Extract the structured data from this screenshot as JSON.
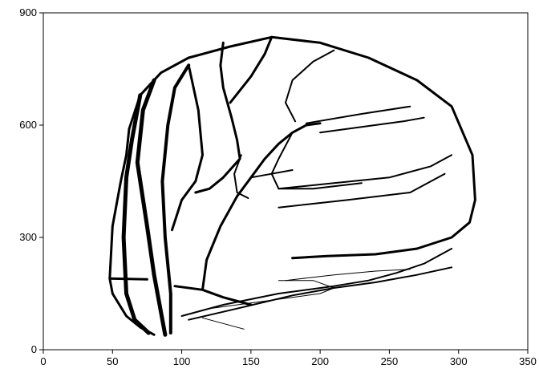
{
  "chart_data": {
    "type": "line",
    "title": "",
    "xlabel": "",
    "ylabel": "",
    "xlim": [
      0,
      350
    ],
    "ylim": [
      0,
      900
    ],
    "grid": false,
    "x_ticks": [
      0,
      50,
      100,
      150,
      200,
      250,
      300,
      350
    ],
    "y_ticks": [
      0,
      300,
      600,
      900
    ],
    "series": [
      {
        "width": 3,
        "points": [
          [
            80,
            40
          ],
          [
            70,
            60
          ],
          [
            60,
            90
          ],
          [
            50,
            150
          ],
          [
            48,
            190
          ],
          [
            50,
            330
          ],
          [
            56,
            450
          ],
          [
            60,
            520
          ],
          [
            62,
            590
          ],
          [
            70,
            680
          ],
          [
            85,
            740
          ],
          [
            105,
            780
          ],
          [
            135,
            810
          ],
          [
            165,
            835
          ],
          [
            200,
            820
          ],
          [
            235,
            780
          ],
          [
            270,
            720
          ],
          [
            295,
            650
          ],
          [
            310,
            520
          ],
          [
            312,
            400
          ],
          [
            308,
            340
          ],
          [
            295,
            300
          ],
          [
            270,
            270
          ],
          [
            240,
            255
          ],
          [
            205,
            250
          ],
          [
            180,
            245
          ]
        ]
      },
      {
        "width": 5,
        "points": [
          [
            76,
            45
          ],
          [
            66,
            80
          ],
          [
            60,
            150
          ],
          [
            58,
            300
          ],
          [
            60,
            460
          ],
          [
            64,
            560
          ],
          [
            70,
            680
          ]
        ]
      },
      {
        "width": 5,
        "points": [
          [
            88,
            40
          ],
          [
            85,
            100
          ],
          [
            80,
            200
          ],
          [
            75,
            330
          ],
          [
            68,
            500
          ],
          [
            72,
            640
          ],
          [
            80,
            720
          ]
        ]
      },
      {
        "width": 4,
        "points": [
          [
            92,
            45
          ],
          [
            92,
            150
          ],
          [
            88,
            300
          ],
          [
            86,
            450
          ],
          [
            90,
            600
          ],
          [
            95,
            700
          ],
          [
            105,
            760
          ]
        ]
      },
      {
        "width": 3,
        "points": [
          [
            48,
            190
          ],
          [
            75,
            188
          ]
        ]
      },
      {
        "width": 3,
        "points": [
          [
            95,
            170
          ],
          [
            115,
            160
          ],
          [
            130,
            140
          ],
          [
            150,
            120
          ]
        ]
      },
      {
        "width": 3,
        "points": [
          [
            93,
            320
          ],
          [
            100,
            400
          ],
          [
            110,
            450
          ],
          [
            115,
            520
          ],
          [
            112,
            640
          ],
          [
            105,
            760
          ]
        ]
      },
      {
        "width": 3,
        "points": [
          [
            110,
            420
          ],
          [
            120,
            430
          ],
          [
            130,
            460
          ],
          [
            142,
            510
          ],
          [
            140,
            560
          ],
          [
            136,
            620
          ],
          [
            130,
            700
          ],
          [
            128,
            760
          ],
          [
            130,
            820
          ]
        ]
      },
      {
        "width": 3,
        "points": [
          [
            135,
            660
          ],
          [
            150,
            730
          ],
          [
            160,
            790
          ],
          [
            165,
            835
          ]
        ]
      },
      {
        "width": 3,
        "points": [
          [
            115,
            160
          ],
          [
            118,
            240
          ],
          [
            128,
            330
          ],
          [
            140,
            410
          ],
          [
            150,
            460
          ],
          [
            160,
            510
          ],
          [
            170,
            550
          ],
          [
            180,
            580
          ],
          [
            190,
            600
          ],
          [
            200,
            605
          ]
        ]
      },
      {
        "width": 2,
        "points": [
          [
            182,
            610
          ],
          [
            175,
            660
          ],
          [
            180,
            720
          ],
          [
            195,
            770
          ],
          [
            210,
            800
          ]
        ]
      },
      {
        "width": 2,
        "points": [
          [
            190,
            605
          ],
          [
            230,
            630
          ],
          [
            265,
            650
          ]
        ]
      },
      {
        "width": 2,
        "points": [
          [
            200,
            580
          ],
          [
            260,
            610
          ],
          [
            275,
            620
          ]
        ]
      },
      {
        "width": 2,
        "points": [
          [
            180,
            580
          ],
          [
            170,
            510
          ],
          [
            165,
            470
          ],
          [
            170,
            430
          ],
          [
            195,
            430
          ],
          [
            230,
            445
          ]
        ]
      },
      {
        "width": 2,
        "points": [
          [
            170,
            430
          ],
          [
            210,
            445
          ],
          [
            250,
            460
          ],
          [
            280,
            490
          ],
          [
            295,
            520
          ]
        ]
      },
      {
        "width": 2,
        "points": [
          [
            170,
            380
          ],
          [
            220,
            400
          ],
          [
            265,
            420
          ],
          [
            290,
            470
          ]
        ]
      },
      {
        "width": 2,
        "points": [
          [
            148,
            405
          ],
          [
            140,
            420
          ],
          [
            138,
            470
          ],
          [
            143,
            520
          ]
        ]
      },
      {
        "width": 2,
        "points": [
          [
            150,
            460
          ],
          [
            165,
            470
          ],
          [
            180,
            480
          ]
        ]
      },
      {
        "width": 2,
        "points": [
          [
            100,
            90
          ],
          [
            130,
            120
          ],
          [
            170,
            150
          ],
          [
            210,
            170
          ],
          [
            235,
            185
          ],
          [
            255,
            205
          ],
          [
            275,
            230
          ],
          [
            295,
            270
          ]
        ]
      },
      {
        "width": 2,
        "points": [
          [
            105,
            80
          ],
          [
            140,
            110
          ],
          [
            180,
            145
          ],
          [
            210,
            165
          ],
          [
            240,
            180
          ],
          [
            270,
            200
          ],
          [
            295,
            220
          ]
        ]
      },
      {
        "width": 1,
        "points": [
          [
            175,
            185
          ],
          [
            210,
            200
          ],
          [
            240,
            210
          ],
          [
            265,
            215
          ]
        ]
      },
      {
        "width": 1,
        "points": [
          [
            120,
            110
          ],
          [
            150,
            125
          ],
          [
            180,
            140
          ],
          [
            200,
            150
          ],
          [
            210,
            165
          ],
          [
            195,
            185
          ],
          [
            170,
            185
          ]
        ]
      },
      {
        "width": 1,
        "points": [
          [
            115,
            85
          ],
          [
            130,
            70
          ],
          [
            145,
            55
          ]
        ]
      }
    ]
  }
}
